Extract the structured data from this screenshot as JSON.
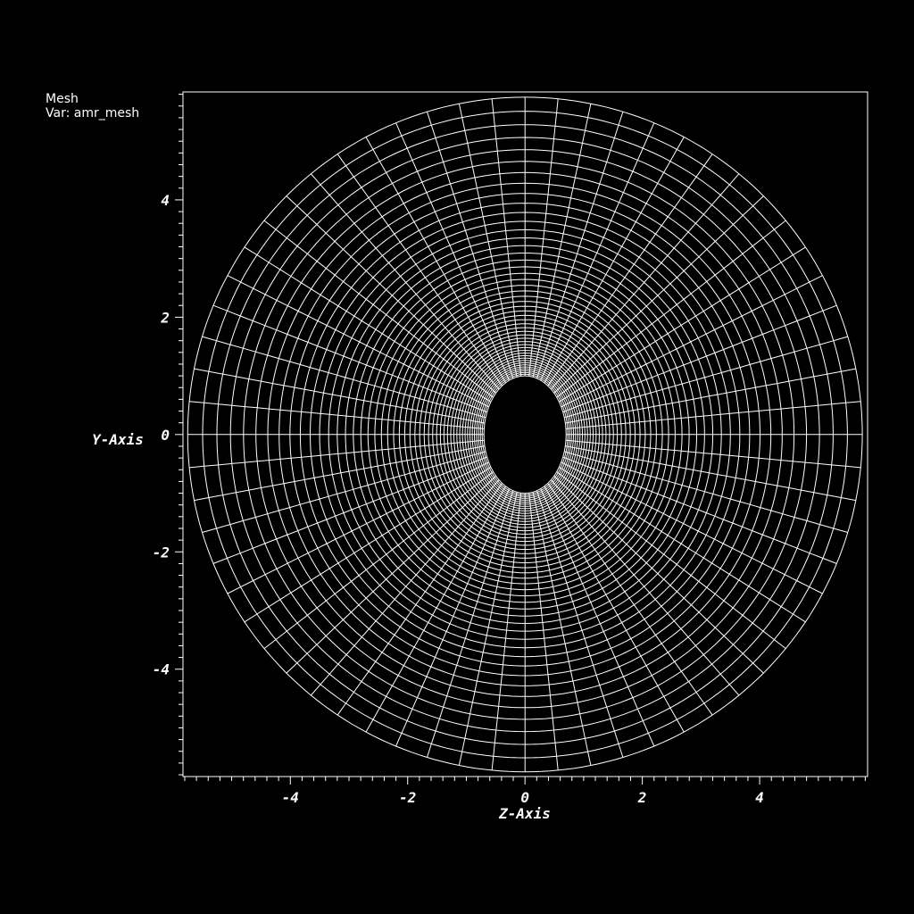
{
  "legend": {
    "plot_type": "Mesh",
    "variable": "Var: amr_mesh"
  },
  "axes": {
    "x": {
      "title": "Z-Axis",
      "range": [
        -5.83,
        5.84
      ],
      "major_ticks": [
        -4,
        -2,
        0,
        2,
        4
      ],
      "tick_labels": [
        "-4",
        "-2",
        "0",
        "2",
        "4"
      ],
      "minor_step": 0.2
    },
    "y": {
      "title": "Y-Axis",
      "range": [
        -5.83,
        5.84
      ],
      "major_ticks": [
        -4,
        -2,
        0,
        2,
        4
      ],
      "tick_labels": [
        "-4",
        "-2",
        "0",
        "2",
        "4"
      ],
      "minor_step": 0.2
    }
  },
  "mesh": {
    "inner_boundary": {
      "shape": "ellipse",
      "semi_axis_z": 0.7,
      "semi_axis_y": 1.0
    },
    "outer_boundary": {
      "shape": "circle",
      "radius": 5.75
    },
    "radial_lines": 64,
    "rings": 48
  },
  "colors": {
    "background": "#000000",
    "mesh": "#ffffff",
    "text": "#ffffff"
  }
}
